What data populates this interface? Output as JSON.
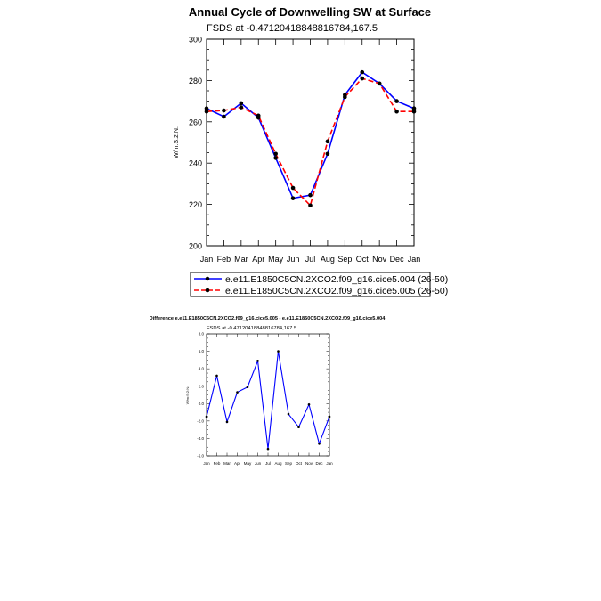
{
  "chart_data": [
    {
      "type": "line",
      "title": "Annual Cycle of Downwelling SW at Surface",
      "subtitle": "FSDS at -0.47120418848816784,167.5",
      "xlabel": "",
      "ylabel": "W/m:S:2:N:",
      "categories": [
        "Jan",
        "Feb",
        "Mar",
        "Apr",
        "May",
        "Jun",
        "Jul",
        "Aug",
        "Sep",
        "Oct",
        "Nov",
        "Dec",
        "Jan"
      ],
      "yticks": [
        "200",
        "220",
        "240",
        "260",
        "280",
        "300"
      ],
      "ylim": [
        200,
        300
      ],
      "grid": false,
      "legend_position": "bottom",
      "series": [
        {
          "name": "e.e11.E1850C5CN.2XCO2.f09_g16.cice5.004 (26-50)",
          "color": "#0000ff",
          "dash": "solid",
          "values": [
            266.5,
            262.5,
            269.0,
            262.0,
            242.5,
            223.0,
            224.5,
            244.5,
            273.0,
            284.0,
            278.5,
            270.0,
            266.5
          ]
        },
        {
          "name": "e.e11.E1850C5CN.2XCO2.f09_g16.cice5.005 (26-50)",
          "color": "#ff0000",
          "dash": "dashed",
          "values": [
            265.0,
            265.5,
            267.0,
            263.0,
            244.5,
            228.0,
            219.5,
            250.5,
            272.0,
            281.0,
            278.5,
            265.0,
            265.0
          ]
        }
      ]
    },
    {
      "type": "line",
      "title": "Difference e.e11.E1850C5CN.2XCO2.f09_g16.cice5.005 - e.e11.E1850C5CN.2XCO2.f09_g16.cice5.004",
      "subtitle": "FSDS at -0.47120418848816784,167.5",
      "xlabel": "",
      "ylabel": "W/m:S:2:N:",
      "categories": [
        "Jan",
        "Feb",
        "Mar",
        "Apr",
        "May",
        "Jun",
        "Jul",
        "Aug",
        "Sep",
        "Oct",
        "Nov",
        "Dec",
        "Jan"
      ],
      "yticks": [
        "-6.0",
        "-4.0",
        "-2.0",
        "0.0",
        "2.0",
        "4.0",
        "6.0",
        "8.0"
      ],
      "ylim": [
        -6,
        8
      ],
      "grid": false,
      "series": [
        {
          "name": "difference",
          "color": "#0000ff",
          "dash": "solid",
          "values": [
            -1.5,
            3.2,
            -2.1,
            1.3,
            1.9,
            4.9,
            -5.2,
            6.0,
            -1.2,
            -2.7,
            -0.1,
            -4.6,
            -1.5
          ]
        }
      ]
    }
  ]
}
